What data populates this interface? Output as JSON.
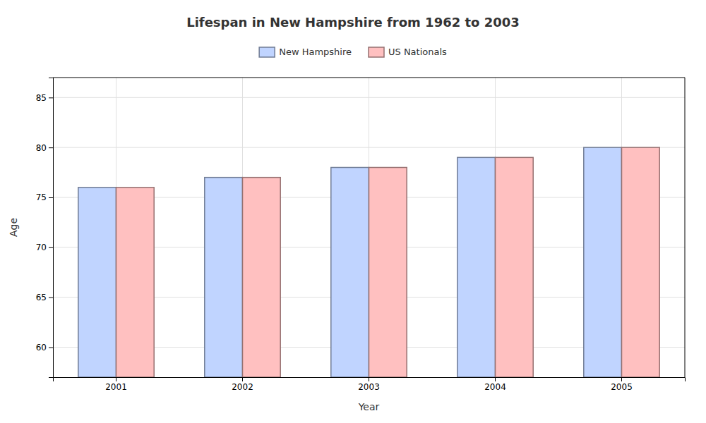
{
  "chart_data": {
    "type": "bar",
    "title": "Lifespan in New Hampshire from 1962 to 2003",
    "xlabel": "Year",
    "ylabel": "Age",
    "categories": [
      "2001",
      "2002",
      "2003",
      "2004",
      "2005"
    ],
    "series": [
      {
        "name": "New Hampshire",
        "color": "#c0d4ff",
        "values": [
          76,
          77,
          78,
          79,
          80
        ]
      },
      {
        "name": "US Nationals",
        "color": "#ffc0c0",
        "values": [
          76,
          77,
          78,
          79,
          80
        ]
      }
    ],
    "ylim": [
      57,
      87
    ],
    "yticks": [
      60,
      65,
      70,
      75,
      80,
      85
    ],
    "grid": true,
    "legend": "top"
  }
}
